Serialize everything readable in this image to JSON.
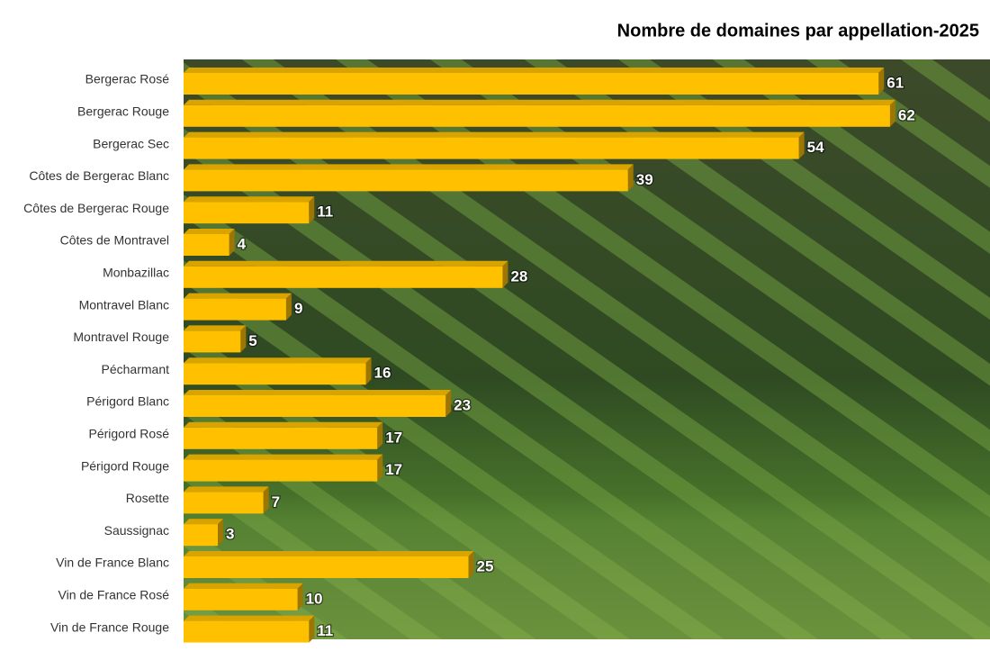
{
  "chart_data": {
    "type": "bar",
    "orientation": "horizontal",
    "title": "Nombre de domaines par appellation-2025",
    "categories": [
      "Bergerac Rosé",
      "Bergerac Rouge",
      "Bergerac Sec",
      "Côtes de Bergerac Blanc",
      "Côtes de Bergerac Rouge",
      "Côtes de Montravel",
      "Monbazillac",
      "Montravel Blanc",
      "Montravel Rouge",
      "Pécharmant",
      "Périgord Blanc",
      "Périgord Rosé",
      "Périgord Rouge",
      "Rosette",
      "Saussignac",
      "Vin de France Blanc",
      "Vin de France Rosé",
      "Vin de France Rouge"
    ],
    "values": [
      61,
      62,
      54,
      39,
      11,
      4,
      28,
      9,
      5,
      16,
      23,
      17,
      17,
      7,
      3,
      25,
      10,
      11
    ],
    "color": "#FFC000"
  }
}
